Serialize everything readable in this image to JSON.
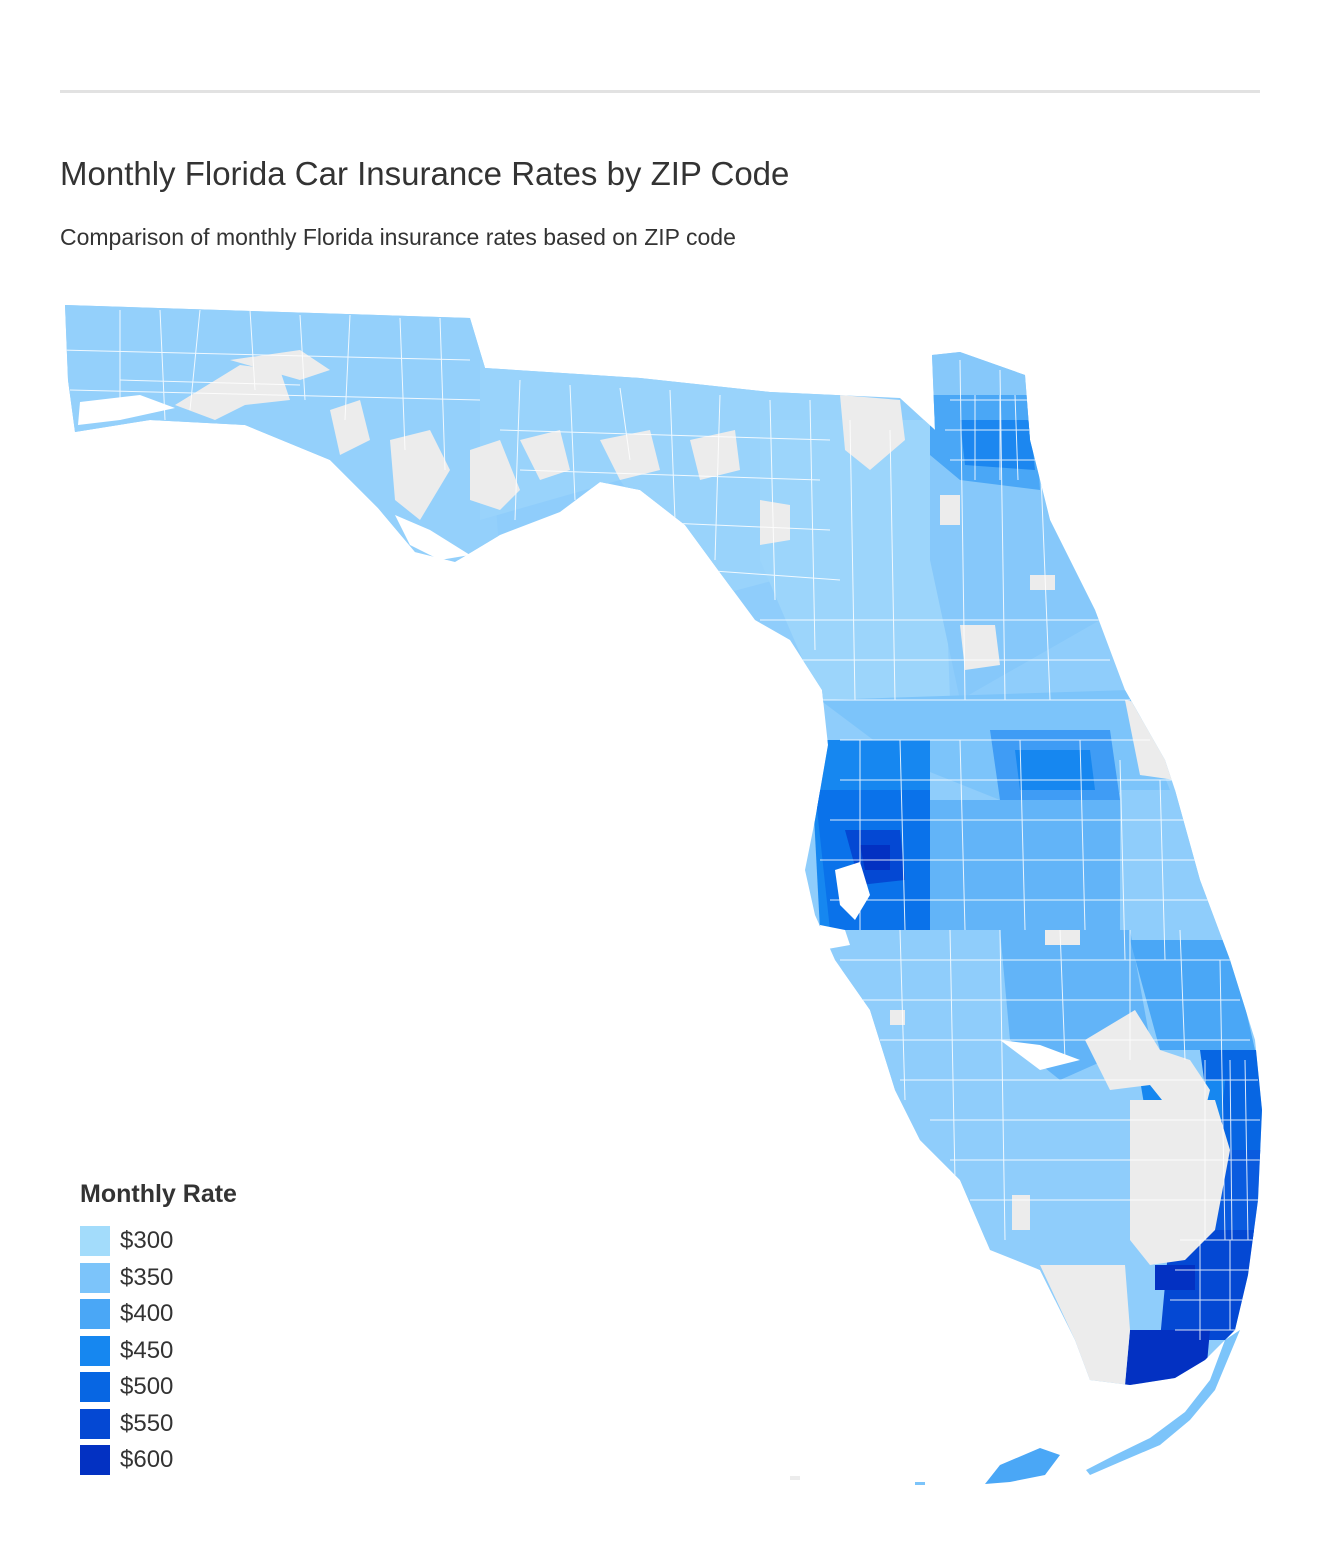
{
  "header": {
    "title": "Monthly Florida Car Insurance Rates by ZIP Code",
    "subtitle": "Comparison of monthly Florida insurance rates based on ZIP code"
  },
  "legend": {
    "title": "Monthly Rate",
    "items": [
      {
        "label": "$300",
        "color": "#a3dcfb"
      },
      {
        "label": "$350",
        "color": "#7cc4fa"
      },
      {
        "label": "$400",
        "color": "#4aa7f6"
      },
      {
        "label": "$450",
        "color": "#1687f0"
      },
      {
        "label": "$500",
        "color": "#0766e3"
      },
      {
        "label": "$550",
        "color": "#0448d3"
      },
      {
        "label": "$600",
        "color": "#0331c2"
      }
    ]
  },
  "map": {
    "no_data_color": "#ececec",
    "boundary_color": "#ffffff"
  }
}
